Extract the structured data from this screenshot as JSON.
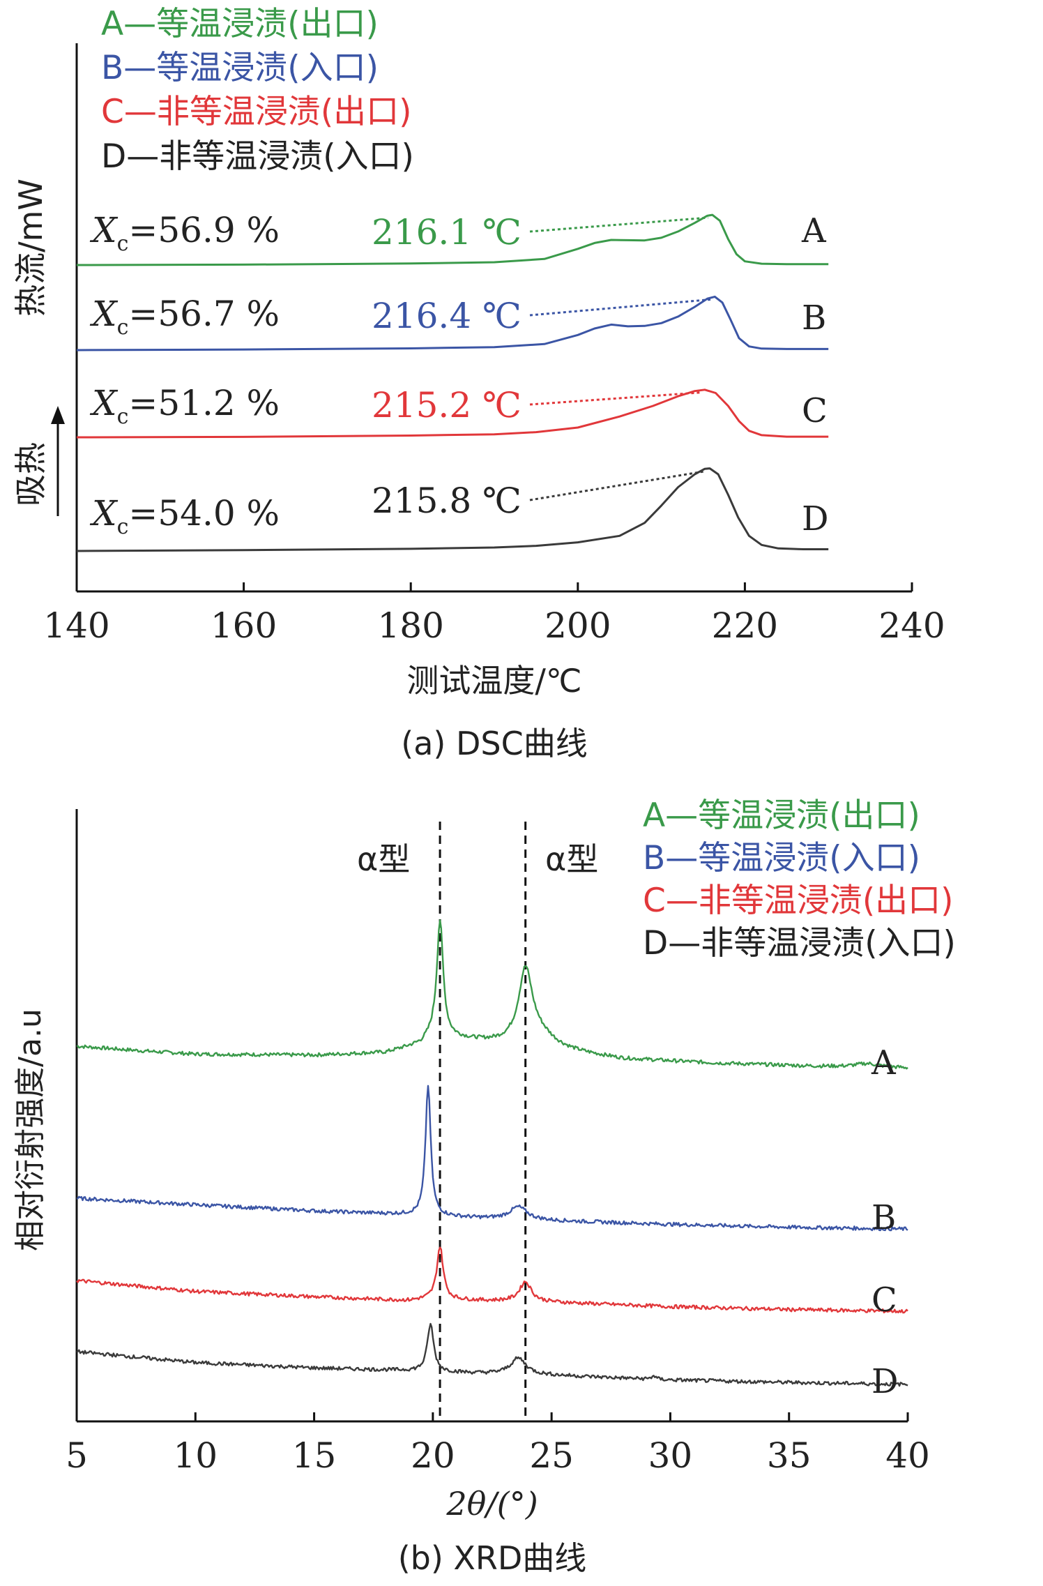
{
  "colors": {
    "A": "#3a9a4a",
    "B": "#3b55a5",
    "C": "#e1373a",
    "D": "#3a3a3a",
    "axis": "#111111"
  },
  "legend": [
    {
      "key": "A",
      "label": "A—等温浸渍(出口)"
    },
    {
      "key": "B",
      "label": "B—等温浸渍(入口)"
    },
    {
      "key": "C",
      "label": "C—非等温浸渍(出口)"
    },
    {
      "key": "D",
      "label": "D—非等温浸渍(入口)"
    }
  ],
  "chart_data": [
    {
      "type": "line",
      "caption": "(a) DSC曲线",
      "xlabel": "测试温度/℃",
      "ylabel": "热流/mW",
      "endo_label": "吸热",
      "xlim": [
        140,
        240
      ],
      "xticks": [
        "140",
        "160",
        "180",
        "200",
        "220",
        "240"
      ],
      "series": [
        {
          "name": "A",
          "label": "A",
          "xc_prefix": "X",
          "xc_sub": "c",
          "xc_value": "=56.9 %",
          "peak_label": "216.1 ℃",
          "peak_x": 216.1,
          "points": [
            [
              140,
              0
            ],
            [
              160,
              0.02
            ],
            [
              180,
              0.07
            ],
            [
              190,
              0.13
            ],
            [
              196,
              0.28
            ],
            [
              200,
              0.75
            ],
            [
              202,
              1.02
            ],
            [
              204,
              1.16
            ],
            [
              206,
              1.15
            ],
            [
              208,
              1.14
            ],
            [
              210,
              1.26
            ],
            [
              212,
              1.55
            ],
            [
              214,
              1.95
            ],
            [
              215.5,
              2.28
            ],
            [
              216.1,
              2.32
            ],
            [
              217,
              2.05
            ],
            [
              218,
              1.2
            ],
            [
              219,
              0.5
            ],
            [
              220,
              0.17
            ],
            [
              222,
              0.06
            ],
            [
              225,
              0.04
            ],
            [
              230,
              0.04
            ]
          ]
        },
        {
          "name": "B",
          "label": "B",
          "xc_prefix": "X",
          "xc_sub": "c",
          "xc_value": "=56.7 %",
          "peak_label": "216.4 ℃",
          "peak_x": 216.4,
          "points": [
            [
              140,
              0
            ],
            [
              160,
              0.03
            ],
            [
              180,
              0.08
            ],
            [
              190,
              0.14
            ],
            [
              196,
              0.28
            ],
            [
              200,
              0.7
            ],
            [
              202,
              1.0
            ],
            [
              204,
              1.18
            ],
            [
              206,
              1.1
            ],
            [
              208,
              1.12
            ],
            [
              210,
              1.25
            ],
            [
              212,
              1.55
            ],
            [
              214,
              2.0
            ],
            [
              215.5,
              2.38
            ],
            [
              216.4,
              2.47
            ],
            [
              217.3,
              2.2
            ],
            [
              218.3,
              1.4
            ],
            [
              219.3,
              0.55
            ],
            [
              220.5,
              0.17
            ],
            [
              222,
              0.07
            ],
            [
              225,
              0.05
            ],
            [
              230,
              0.05
            ]
          ]
        },
        {
          "name": "C",
          "label": "C",
          "xc_prefix": "X",
          "xc_sub": "c",
          "xc_value": "=51.2 %",
          "peak_label": "215.2 ℃",
          "peak_x": 215.2,
          "points": [
            [
              140,
              0
            ],
            [
              160,
              0.02
            ],
            [
              180,
              0.08
            ],
            [
              190,
              0.14
            ],
            [
              195,
              0.24
            ],
            [
              200,
              0.45
            ],
            [
              205,
              0.96
            ],
            [
              209,
              1.45
            ],
            [
              212,
              1.9
            ],
            [
              214,
              2.14
            ],
            [
              215.2,
              2.2
            ],
            [
              216.5,
              2.05
            ],
            [
              218,
              1.45
            ],
            [
              219.3,
              0.75
            ],
            [
              220.5,
              0.3
            ],
            [
              222,
              0.1
            ],
            [
              225,
              0.03
            ],
            [
              230,
              0.03
            ]
          ]
        },
        {
          "name": "D",
          "label": "D",
          "xc_prefix": "X",
          "xc_sub": "c",
          "xc_value": "=54.0 %",
          "peak_label": "215.8 ℃",
          "peak_x": 215.8,
          "points": [
            [
              140,
              0
            ],
            [
              160,
              0.04
            ],
            [
              180,
              0.1
            ],
            [
              190,
              0.16
            ],
            [
              195,
              0.24
            ],
            [
              200,
              0.4
            ],
            [
              205,
              0.7
            ],
            [
              208,
              1.3
            ],
            [
              210,
              2.1
            ],
            [
              212,
              2.95
            ],
            [
              214,
              3.55
            ],
            [
              215.2,
              3.8
            ],
            [
              215.8,
              3.82
            ],
            [
              216.8,
              3.55
            ],
            [
              218,
              2.6
            ],
            [
              219.2,
              1.55
            ],
            [
              220.5,
              0.7
            ],
            [
              222,
              0.28
            ],
            [
              224,
              0.12
            ],
            [
              227,
              0.08
            ],
            [
              230,
              0.08
            ]
          ]
        }
      ]
    },
    {
      "type": "line",
      "caption": "(b) XRD曲线",
      "xlabel": "2θ/(°)",
      "ylabel": "相对衍射强度/a.u",
      "xlim": [
        5,
        40
      ],
      "xticks": [
        "5",
        "10",
        "15",
        "20",
        "25",
        "30",
        "35",
        "40"
      ],
      "reference_lines": [
        {
          "x": 20.3,
          "label": "α型"
        },
        {
          "x": 23.9,
          "label": "α型"
        }
      ],
      "series": [
        {
          "name": "A",
          "label": "A",
          "baseline": [
            [
              5,
              0
            ],
            [
              8,
              -0.14
            ],
            [
              10,
              -0.22
            ],
            [
              15,
              -0.25
            ],
            [
              18,
              -0.18
            ],
            [
              19.5,
              0.05
            ],
            [
              20,
              0.28
            ],
            [
              25,
              -0.1
            ],
            [
              28,
              -0.35
            ],
            [
              32,
              -0.47
            ],
            [
              36,
              -0.55
            ],
            [
              40,
              -0.6
            ]
          ],
          "peaks": [
            [
              20.3,
              3.2,
              0.16
            ],
            [
              23.9,
              2.0,
              0.35
            ],
            [
              24.5,
              0.35,
              0.8
            ],
            [
              38.3,
              0.1,
              0.6
            ]
          ]
        },
        {
          "name": "B",
          "label": "B",
          "baseline": [
            [
              5,
              0
            ],
            [
              10,
              -0.18
            ],
            [
              15,
              -0.35
            ],
            [
              19,
              -0.45
            ],
            [
              22,
              -0.55
            ],
            [
              25,
              -0.62
            ],
            [
              30,
              -0.72
            ],
            [
              35,
              -0.8
            ],
            [
              40,
              -0.85
            ]
          ],
          "peaks": [
            [
              19.8,
              3.6,
              0.13
            ],
            [
              23.6,
              0.35,
              0.45
            ]
          ]
        },
        {
          "name": "C",
          "label": "C",
          "baseline": [
            [
              5,
              0
            ],
            [
              10,
              -0.3
            ],
            [
              15,
              -0.45
            ],
            [
              19,
              -0.55
            ],
            [
              20,
              -0.5
            ],
            [
              22,
              -0.55
            ],
            [
              25,
              -0.6
            ],
            [
              30,
              -0.72
            ],
            [
              35,
              -0.8
            ],
            [
              40,
              -0.85
            ]
          ],
          "peaks": [
            [
              20.3,
              1.45,
              0.16
            ],
            [
              23.9,
              0.55,
              0.3
            ]
          ]
        },
        {
          "name": "D",
          "label": "D",
          "baseline": [
            [
              5,
              0
            ],
            [
              10,
              -0.3
            ],
            [
              15,
              -0.45
            ],
            [
              19,
              -0.52
            ],
            [
              22,
              -0.6
            ],
            [
              25,
              -0.65
            ],
            [
              30,
              -0.78
            ],
            [
              35,
              -0.85
            ],
            [
              40,
              -0.9
            ]
          ],
          "peaks": [
            [
              19.9,
              1.3,
              0.16
            ],
            [
              23.6,
              0.45,
              0.4
            ],
            [
              29.3,
              0.1,
              0.1
            ]
          ]
        }
      ]
    }
  ]
}
